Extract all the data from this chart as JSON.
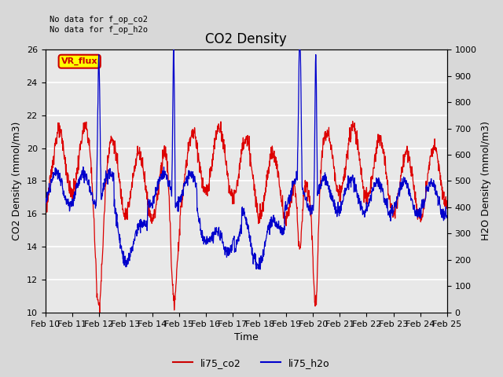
{
  "title": "CO2 Density",
  "xlabel": "Time",
  "ylabel_left": "CO2 Density (mmol/m3)",
  "ylabel_right": "H2O Density (mmol/m3)",
  "ylim_left": [
    10,
    26
  ],
  "ylim_right": [
    0,
    1000
  ],
  "annotation_text": "No data for f_op_co2\nNo data for f_op_h2o",
  "legend_labels": [
    "li75_co2",
    "li75_h2o"
  ],
  "legend_colors": [
    "#cc0000",
    "#0000cc"
  ],
  "vr_flux_label": "VR_flux",
  "vr_flux_color": "#cc0000",
  "vr_flux_bg": "#ffff00",
  "plot_bg_color": "#e8e8e8",
  "fig_bg_color": "#d8d8d8",
  "grid_color": "#ffffff",
  "co2_color": "#dd0000",
  "h2o_color": "#0000cc",
  "tick_label_fontsize": 8,
  "axis_label_fontsize": 9,
  "title_fontsize": 12
}
